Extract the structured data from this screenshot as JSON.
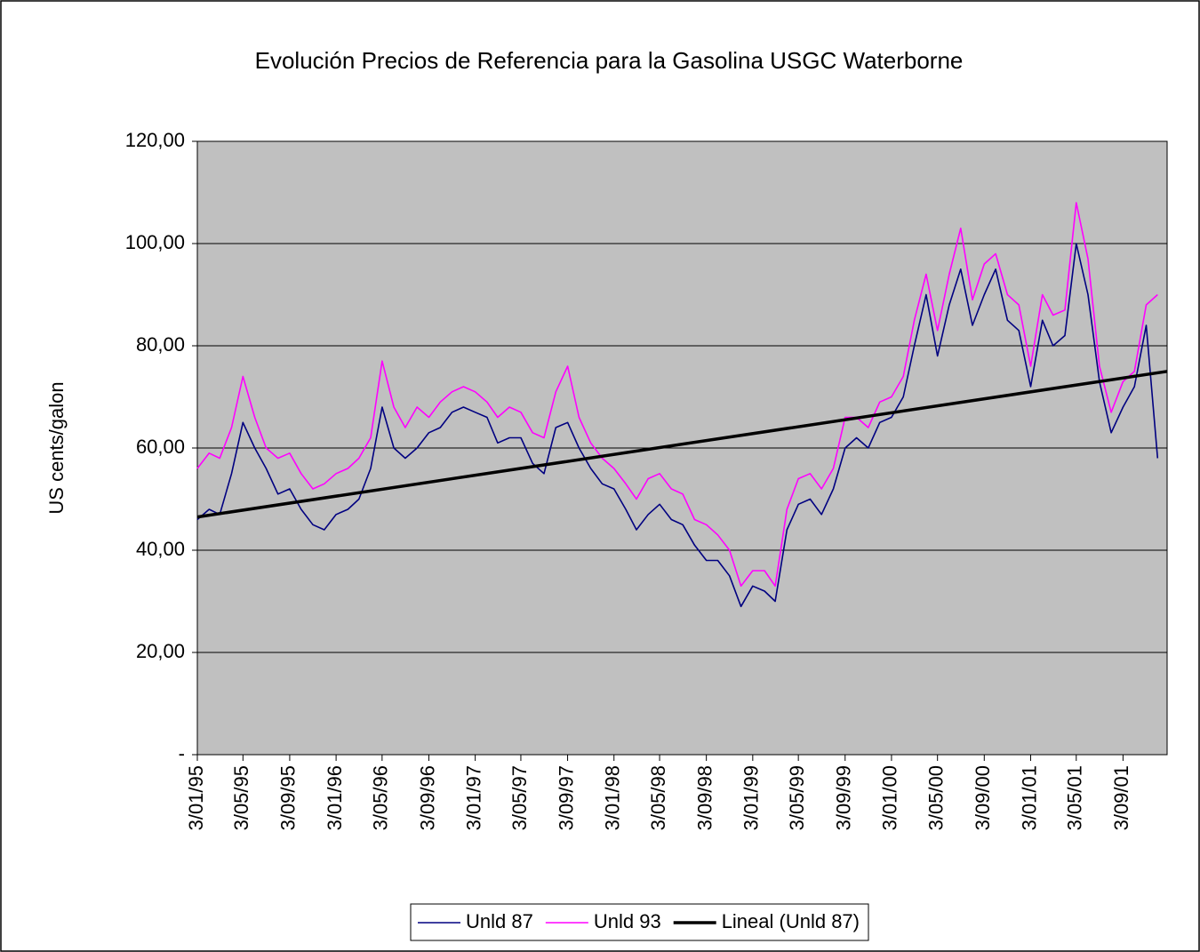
{
  "chart_data": {
    "type": "line",
    "title": "Evolución Precios de Referencia para la Gasolina USGC Waterborne",
    "y_label": "US cents/galon",
    "ylim": [
      0,
      120
    ],
    "yticks": [
      {
        "value": 0,
        "label": "-"
      },
      {
        "value": 20,
        "label": "20,00"
      },
      {
        "value": 40,
        "label": "40,00"
      },
      {
        "value": 60,
        "label": "60,00"
      },
      {
        "value": 80,
        "label": "80,00"
      },
      {
        "value": 100,
        "label": "100,00"
      },
      {
        "value": 120,
        "label": "120,00"
      }
    ],
    "xlim": [
      "3/01/95",
      "28/12/01"
    ],
    "xticks": [
      "3/01/95",
      "3/05/95",
      "3/09/95",
      "3/01/96",
      "3/05/96",
      "3/09/96",
      "3/01/97",
      "3/05/97",
      "3/09/97",
      "3/01/98",
      "3/05/98",
      "3/09/98",
      "3/01/99",
      "3/05/99",
      "3/09/99",
      "3/01/00",
      "3/05/00",
      "3/09/00",
      "3/01/01",
      "3/05/01",
      "3/09/01"
    ],
    "grid": true,
    "background": "#c0c0c0",
    "x": [
      "3/01/95",
      "3/02/95",
      "3/03/95",
      "3/04/95",
      "3/05/95",
      "3/06/95",
      "3/07/95",
      "3/08/95",
      "3/09/95",
      "3/10/95",
      "3/11/95",
      "3/12/95",
      "3/01/96",
      "3/02/96",
      "3/03/96",
      "3/04/96",
      "3/05/96",
      "3/06/96",
      "3/07/96",
      "3/08/96",
      "3/09/96",
      "3/10/96",
      "3/11/96",
      "3/12/96",
      "3/01/97",
      "3/02/97",
      "3/03/97",
      "3/04/97",
      "3/05/97",
      "3/06/97",
      "3/07/97",
      "3/08/97",
      "3/09/97",
      "3/10/97",
      "3/11/97",
      "3/12/97",
      "3/01/98",
      "3/02/98",
      "3/03/98",
      "3/04/98",
      "3/05/98",
      "3/06/98",
      "3/07/98",
      "3/08/98",
      "3/09/98",
      "3/10/98",
      "3/11/98",
      "3/12/98",
      "3/01/99",
      "3/02/99",
      "3/03/99",
      "3/04/99",
      "3/05/99",
      "3/06/99",
      "3/07/99",
      "3/08/99",
      "3/09/99",
      "3/10/99",
      "3/11/99",
      "3/12/99",
      "3/01/00",
      "3/02/00",
      "3/03/00",
      "3/04/00",
      "3/05/00",
      "3/06/00",
      "3/07/00",
      "3/08/00",
      "3/09/00",
      "3/10/00",
      "3/11/00",
      "3/12/00",
      "3/01/01",
      "3/02/01",
      "3/03/01",
      "3/04/01",
      "3/05/01",
      "3/06/01",
      "3/07/01",
      "3/08/01",
      "3/09/01",
      "3/10/01",
      "3/11/01",
      "3/12/01"
    ],
    "series": [
      {
        "name": "Unld 87",
        "color": "#000080",
        "width": 1.6,
        "values": [
          46,
          48,
          47,
          55,
          65,
          60,
          56,
          51,
          52,
          48,
          45,
          44,
          47,
          48,
          50,
          56,
          68,
          60,
          58,
          60,
          63,
          64,
          67,
          68,
          67,
          66,
          61,
          62,
          62,
          57,
          55,
          64,
          65,
          60,
          56,
          53,
          52,
          48,
          44,
          47,
          49,
          46,
          45,
          41,
          38,
          38,
          35,
          29,
          33,
          32,
          30,
          44,
          49,
          50,
          47,
          52,
          60,
          62,
          60,
          65,
          66,
          70,
          80,
          90,
          78,
          88,
          95,
          84,
          90,
          95,
          85,
          83,
          72,
          85,
          80,
          82,
          100,
          90,
          73,
          63,
          68,
          72,
          84,
          58
        ]
      },
      {
        "name": "Unld 93",
        "color": "#ff00ff",
        "width": 1.6,
        "values": [
          56,
          59,
          58,
          64,
          74,
          66,
          60,
          58,
          59,
          55,
          52,
          53,
          55,
          56,
          58,
          62,
          77,
          68,
          64,
          68,
          66,
          69,
          71,
          72,
          71,
          69,
          66,
          68,
          67,
          63,
          62,
          71,
          76,
          66,
          61,
          58,
          56,
          53,
          50,
          54,
          55,
          52,
          51,
          46,
          45,
          43,
          40,
          33,
          36,
          36,
          33,
          48,
          54,
          55,
          52,
          56,
          66,
          66,
          64,
          69,
          70,
          74,
          85,
          94,
          83,
          94,
          103,
          89,
          96,
          98,
          90,
          88,
          76,
          90,
          86,
          87,
          108,
          97,
          76,
          67,
          73,
          75,
          88,
          90
        ]
      },
      {
        "name": "Lineal (Unld 87)",
        "color": "#000000",
        "width": 3.5,
        "x": [
          "3/01/95",
          "28/12/01"
        ],
        "values": [
          46.5,
          75
        ]
      }
    ]
  }
}
